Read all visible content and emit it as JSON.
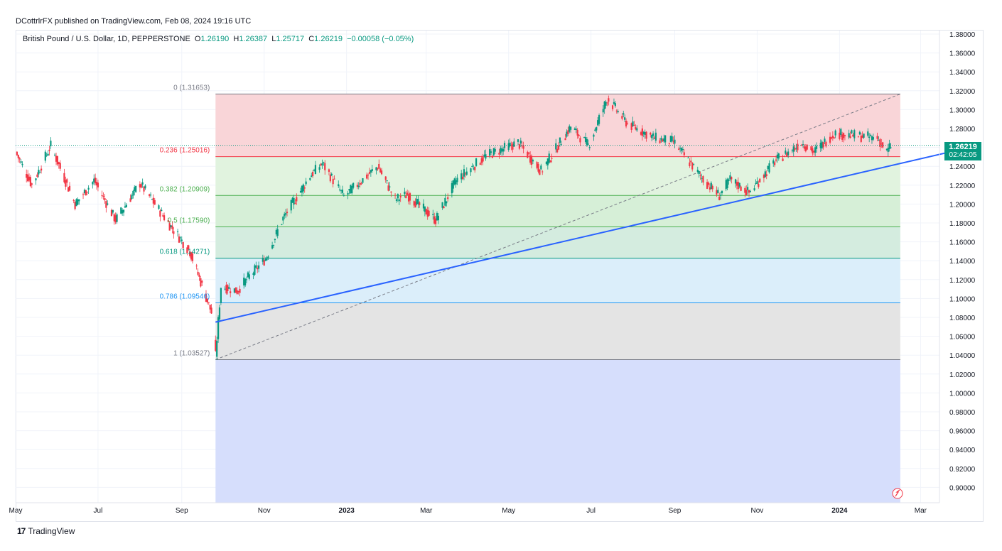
{
  "header": {
    "publisher_line": "DCottrlrFX published on TradingView.com, Feb 08, 2024 19:16 UTC"
  },
  "legend": {
    "symbol": "British Pound / U.S. Dollar, 1D, PEPPERSTONE",
    "open_label": "O",
    "open": "1.26190",
    "high_label": "H",
    "high": "1.26387",
    "low_label": "L",
    "low": "1.25717",
    "close_label": "C",
    "close": "1.26219",
    "change": "−0.00058 (−0.05%)"
  },
  "price_tag": {
    "price": "1.26219",
    "countdown": "02:42:05"
  },
  "footer": {
    "brand": "TradingView",
    "logo_glyph": "17"
  },
  "colors": {
    "up": "#089981",
    "down": "#f23645",
    "trendline": "#2962ff",
    "fib_0_bg": "#f9d5d8",
    "fib_236_bg": "#e1f3df",
    "fib_382_bg": "#d6efd7",
    "fib_618_bg": "#dbeefa",
    "fib_786_bg": "#e4e4e4",
    "fib_1_bg": "#d6defc"
  },
  "chart_data": {
    "type": "candlestick",
    "title": "British Pound / U.S. Dollar, 1D, PEPPERSTONE",
    "ylim": [
      0.89,
      1.39
    ],
    "y_ticks": [
      "1.38000",
      "1.36000",
      "1.34000",
      "1.32000",
      "1.30000",
      "1.28000",
      "1.26000",
      "1.24000",
      "1.22000",
      "1.20000",
      "1.18000",
      "1.16000",
      "1.14000",
      "1.12000",
      "1.10000",
      "1.08000",
      "1.06000",
      "1.04000",
      "1.02000",
      "1.00000",
      "0.98000",
      "0.96000",
      "0.94000",
      "0.92000",
      "0.90000"
    ],
    "x_ticks": [
      "May",
      "Jul",
      "Sep",
      "Nov",
      "2023",
      "Mar",
      "May",
      "Jul",
      "Sep",
      "Nov",
      "2024",
      "Mar"
    ],
    "x_range": [
      "2022-05-01",
      "2024-03-15"
    ],
    "last_price": 1.26219,
    "fibonacci": {
      "start_date": "2022-09-26",
      "end_date": "2024-02-15",
      "levels": [
        {
          "ratio": "0",
          "price": 1.31653,
          "label": "0 (1.31653)",
          "color": "#787b86"
        },
        {
          "ratio": "0.236",
          "price": 1.25016,
          "label": "0.236 (1.25016)",
          "color": "#f23645"
        },
        {
          "ratio": "0.382",
          "price": 1.20909,
          "label": "0.382 (1.20909)",
          "color": "#4caf50"
        },
        {
          "ratio": "0.5",
          "price": 1.1759,
          "label": "0.5 (1.17590)",
          "color": "#4caf50"
        },
        {
          "ratio": "0.618",
          "price": 1.14271,
          "label": "0.618 (1.14271)",
          "color": "#089981"
        },
        {
          "ratio": "0.786",
          "price": 1.09546,
          "label": "0.786 (1.09546)",
          "color": "#2196f3"
        },
        {
          "ratio": "1",
          "price": 1.03527,
          "label": "1 (1.03527)",
          "color": "#787b86"
        }
      ]
    },
    "trendline": {
      "points": [
        [
          "2022-09-26",
          1.075
        ],
        [
          "2024-03-15",
          1.254
        ]
      ]
    },
    "fib_diagonal": {
      "points": [
        [
          "2022-09-26",
          1.03527
        ],
        [
          "2024-02-15",
          1.31653
        ]
      ]
    },
    "candles_summary": [
      [
        "2022-05-01",
        1.255
      ],
      [
        "2022-05-13",
        1.22
      ],
      [
        "2022-05-27",
        1.262
      ],
      [
        "2022-06-14",
        1.2
      ],
      [
        "2022-06-28",
        1.225
      ],
      [
        "2022-07-14",
        1.183
      ],
      [
        "2022-08-01",
        1.222
      ],
      [
        "2022-08-23",
        1.178
      ],
      [
        "2022-09-07",
        1.15
      ],
      [
        "2022-09-23",
        1.085
      ],
      [
        "2022-09-26",
        1.039
      ],
      [
        "2022-09-30",
        1.113
      ],
      [
        "2022-10-12",
        1.108
      ],
      [
        "2022-10-20",
        1.122
      ],
      [
        "2022-11-02",
        1.142
      ],
      [
        "2022-11-15",
        1.185
      ],
      [
        "2022-12-05",
        1.23
      ],
      [
        "2022-12-14",
        1.243
      ],
      [
        "2022-12-30",
        1.208
      ],
      [
        "2023-01-24",
        1.24
      ],
      [
        "2023-02-06",
        1.205
      ],
      [
        "2023-02-15",
        1.21
      ],
      [
        "2023-03-08",
        1.183
      ],
      [
        "2023-03-23",
        1.225
      ],
      [
        "2023-04-14",
        1.251
      ],
      [
        "2023-05-08",
        1.265
      ],
      [
        "2023-05-25",
        1.235
      ],
      [
        "2023-06-16",
        1.282
      ],
      [
        "2023-06-29",
        1.262
      ],
      [
        "2023-07-13",
        1.312
      ],
      [
        "2023-07-28",
        1.285
      ],
      [
        "2023-08-17",
        1.27
      ],
      [
        "2023-08-31",
        1.266
      ],
      [
        "2023-09-22",
        1.226
      ],
      [
        "2023-10-04",
        1.209
      ],
      [
        "2023-10-12",
        1.226
      ],
      [
        "2023-10-26",
        1.212
      ],
      [
        "2023-11-14",
        1.245
      ],
      [
        "2023-12-04",
        1.265
      ],
      [
        "2023-12-13",
        1.255
      ],
      [
        "2023-12-28",
        1.275
      ],
      [
        "2024-01-15",
        1.272
      ],
      [
        "2024-01-29",
        1.27
      ],
      [
        "2024-02-05",
        1.255
      ],
      [
        "2024-02-08",
        1.262
      ]
    ]
  }
}
